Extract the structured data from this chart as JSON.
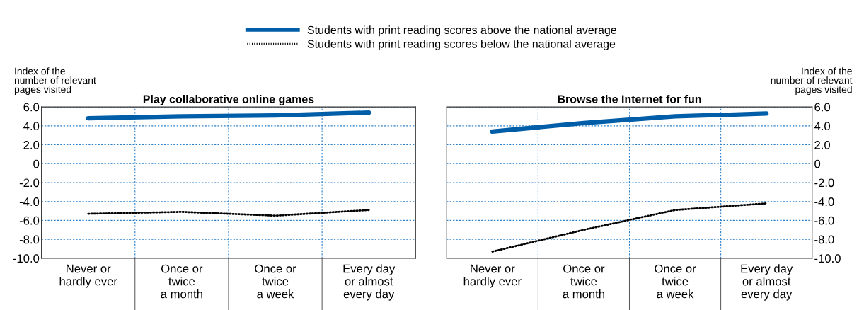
{
  "chart_data": [
    {
      "type": "line",
      "title": "Play collaborative online games",
      "ylabel": "Index of the\nnumber of relevant\npages visited",
      "categories": [
        "Never or\nhardly ever",
        "Once or\ntwice\na month",
        "Once or\ntwice\na week",
        "Every day\nor almost\nevery day"
      ],
      "series": [
        {
          "name": "Students with print reading scores above the national average",
          "color": "#005ea8",
          "line_style": "solid",
          "values": [
            4.8,
            5.0,
            5.1,
            5.4
          ]
        },
        {
          "name": "Students with print reading scores below the national average",
          "color": "#000000",
          "line_style": "dotted",
          "values": [
            -5.3,
            -5.1,
            -5.5,
            -4.9
          ]
        }
      ],
      "ylim": [
        -10,
        6
      ],
      "yticks": [
        {
          "value": -10,
          "label": "-10.0"
        },
        {
          "value": -8,
          "label": "-8.0"
        },
        {
          "value": -6,
          "label": "-6.0"
        },
        {
          "value": -4,
          "label": "-4.0"
        },
        {
          "value": -2,
          "label": "-2.0"
        },
        0,
        {
          "value": 2,
          "label": "2.0"
        },
        {
          "value": 4,
          "label": "4.0"
        },
        {
          "value": 6,
          "label": "6.0"
        }
      ],
      "grid": true,
      "legend": "top"
    },
    {
      "type": "line",
      "title": "Browse the Internet for fun",
      "ylabel": "Index of the\nnumber of relevant\npages visited",
      "categories": [
        "Never or\nhardly ever",
        "Once or\ntwice\na month",
        "Once or\ntwice\na week",
        "Every day\nor almost\nevery day"
      ],
      "series": [
        {
          "color": "#005ea8",
          "line_style": "solid",
          "values": [
            3.4,
            4.3,
            5.0,
            5.3
          ]
        },
        {
          "color": "#000000",
          "line_style": "dotted",
          "values": [
            -9.3,
            -7.0,
            -4.9,
            -4.2
          ]
        }
      ],
      "ylim": [
        -10,
        6
      ],
      "yticks": [
        {
          "value": -10,
          "label": "-10.0"
        },
        {
          "value": -8,
          "label": "-8.0"
        },
        {
          "value": -6,
          "label": "-6.0"
        },
        {
          "value": -4,
          "label": "-4.0"
        },
        {
          "value": -2,
          "label": "-2.0"
        },
        0,
        {
          "value": 2,
          "label": "2.0"
        },
        {
          "value": 4,
          "label": "4.0"
        },
        {
          "value": 6,
          "label": "6.0"
        }
      ],
      "grid": true
    }
  ]
}
